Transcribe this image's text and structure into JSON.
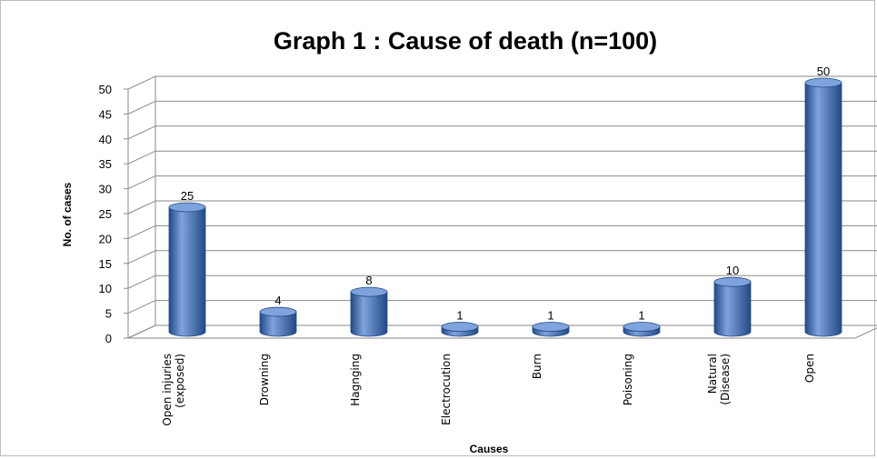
{
  "chart_data": {
    "type": "bar",
    "title": "Graph 1 : Cause of death (n=100)",
    "xlabel": "Causes",
    "ylabel": "No. of cases",
    "categories": [
      [
        "Open injuries",
        "(exposed)"
      ],
      [
        "Drowning"
      ],
      [
        "Hagnging"
      ],
      [
        "Electrocution"
      ],
      [
        "Burn"
      ],
      [
        "Poisoning"
      ],
      [
        "Natural",
        "(Disease)"
      ],
      [
        "Open"
      ]
    ],
    "values": [
      25,
      4,
      8,
      1,
      1,
      1,
      10,
      50
    ],
    "data_labels": [
      "25",
      "4",
      "8",
      "1",
      "1",
      "1",
      "10",
      "50"
    ],
    "ylim": [
      0,
      50
    ],
    "yticks": [
      "0",
      "5",
      "10",
      "15",
      "20",
      "25",
      "30",
      "35",
      "40",
      "45",
      "50"
    ],
    "grid": true,
    "legend": "none",
    "bar_color": "#3d6fb6",
    "bar_dark": "#224a86",
    "bar_light": "#7fa3dc",
    "style": "3d-cylinder"
  }
}
